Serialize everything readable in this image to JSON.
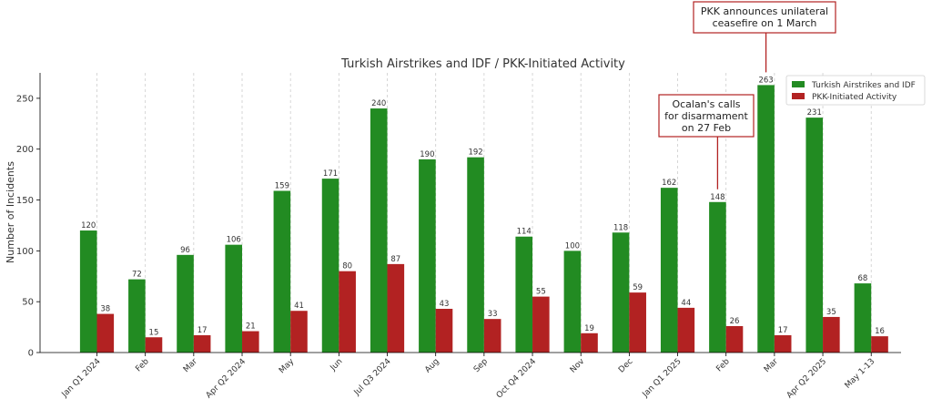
{
  "chart_data": {
    "type": "bar",
    "title": "Turkish Airstrikes and IDF / PKK-Initiated Activity",
    "ylabel": "Number of Incidents",
    "xlabel": "",
    "ylim": [
      0,
      275
    ],
    "yticks": [
      0,
      50,
      100,
      150,
      200,
      250
    ],
    "grid": "vertical-dashed",
    "legend_position": "top-right",
    "categories": [
      "Jan Q1 2024",
      "Feb",
      "Mar",
      "Apr Q2 2024",
      "May",
      "Jun",
      "Jul Q3 2024",
      "Aug",
      "Sep",
      "Oct Q4 2024",
      "Nov",
      "Dec",
      "Jan Q1 2025",
      "Feb",
      "Mar",
      "Apr Q2 2025",
      "May 1-13"
    ],
    "series": [
      {
        "name": "Turkish Airstrikes and IDF",
        "color": "#228b22",
        "values": [
          120,
          72,
          96,
          106,
          159,
          171,
          240,
          190,
          192,
          114,
          100,
          118,
          162,
          148,
          263,
          231,
          68
        ]
      },
      {
        "name": "PKK-Initiated Activity",
        "color": "#b22222",
        "values": [
          38,
          15,
          17,
          21,
          41,
          80,
          87,
          43,
          33,
          55,
          19,
          59,
          44,
          26,
          17,
          35,
          16
        ]
      }
    ],
    "annotations": [
      {
        "lines": [
          "Ocalan's calls",
          "for disarmament",
          "on 27 Feb"
        ],
        "category_index": 13
      },
      {
        "lines": [
          "PKK announces unilateral",
          "ceasefire on 1 March"
        ],
        "category_index": 14
      }
    ]
  }
}
